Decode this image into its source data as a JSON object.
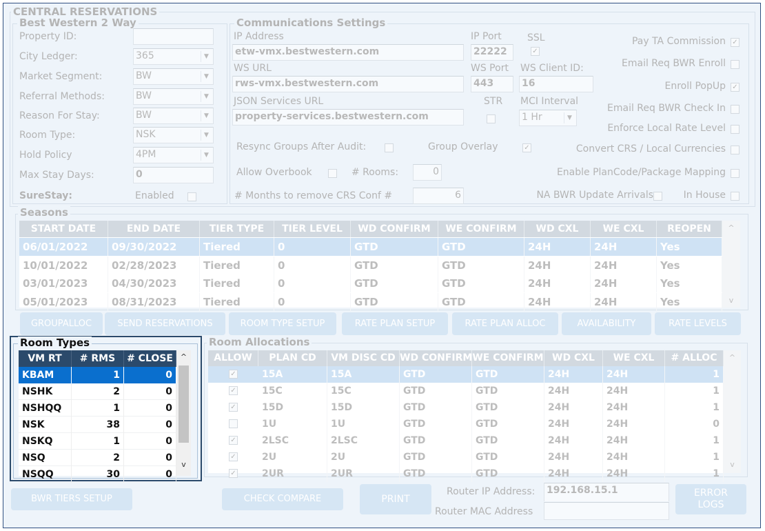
{
  "title": "CENTRAL RESERVATIONS",
  "bw": {
    "title": "Best Western 2 Way",
    "fields": [
      {
        "label": "Property ID:",
        "value": "",
        "type": "text"
      },
      {
        "label": "City Ledger:",
        "value": "365",
        "type": "select"
      },
      {
        "label": "Market Segment:",
        "value": "BW",
        "type": "select"
      },
      {
        "label": "Referral Methods:",
        "value": "BW",
        "type": "select"
      },
      {
        "label": "Reason For Stay:",
        "value": "BW",
        "type": "select"
      },
      {
        "label": "Room Type:",
        "value": "NSK",
        "type": "select"
      },
      {
        "label": "Hold Policy",
        "value": "4PM",
        "type": "select"
      },
      {
        "label": "Max Stay Days:",
        "value": "0",
        "type": "text"
      }
    ],
    "surestay_label": "SureStay:",
    "enabled_label": "Enabled",
    "enabled_checked": false
  },
  "comm": {
    "title": "Communications Settings",
    "ip_address_label": "IP Address",
    "ip_address": "etw-vmx.bestwestern.com",
    "ip_port_label": "IP Port",
    "ip_port": "22222",
    "ssl_label": "SSL",
    "ssl_checked": true,
    "ws_url_label": "WS URL",
    "ws_url": "rws-vmx.bestwestern.com",
    "ws_port_label": "WS Port",
    "ws_port": "443",
    "ws_client_label": "WS Client ID:",
    "ws_client": "16",
    "json_label": "JSON Services URL",
    "json_url": "property-services.bestwestern.com",
    "str_label": "STR",
    "str_checked": false,
    "mci_label": "MCI Interval",
    "mci_value": "1 Hr",
    "resync_label": "Resync Groups After Audit:",
    "resync_checked": false,
    "group_overlay_label": "Group Overlay",
    "group_overlay_checked": true,
    "overbook_label": "Allow Overbook",
    "overbook_checked": false,
    "rooms_label": "# Rooms:",
    "rooms_value": "0",
    "months_label": "# Months to remove CRS Conf #",
    "months_value": "6"
  },
  "options": [
    {
      "label": "Pay TA Commission",
      "checked": true
    },
    {
      "label": "Email Req BWR Enroll",
      "checked": false
    },
    {
      "label": "Enroll PopUp",
      "checked": true
    },
    {
      "label": "Email Req BWR Check In",
      "checked": false
    },
    {
      "label": "Enforce Local Rate Level",
      "checked": false
    },
    {
      "label": "Convert CRS / Local Currencies",
      "checked": false
    },
    {
      "label": "Enable PlanCode/Package Mapping",
      "checked": false
    },
    {
      "label": "NA BWR Update Arrivals",
      "checked": false
    },
    {
      "label": "In House",
      "checked": false
    }
  ],
  "seasons": {
    "title": "Seasons",
    "columns": [
      "START DATE",
      "END DATE",
      "TIER TYPE",
      "TIER LEVEL",
      "WD CONFIRM",
      "WE CONFIRM",
      "WD CXL",
      "WE CXL",
      "REOPEN"
    ],
    "rows": [
      [
        "06/01/2022",
        "09/30/2022",
        "Tiered",
        "0",
        "GTD",
        "GTD",
        "24H",
        "24H",
        "Yes"
      ],
      [
        "10/01/2022",
        "02/28/2023",
        "Tiered",
        "0",
        "GTD",
        "GTD",
        "24H",
        "24H",
        "Yes"
      ],
      [
        "03/01/2023",
        "04/30/2023",
        "Tiered",
        "0",
        "GTD",
        "GTD",
        "24H",
        "24H",
        "Yes"
      ],
      [
        "05/01/2023",
        "08/31/2023",
        "Tiered",
        "0",
        "GTD",
        "GTD",
        "24H",
        "24H",
        "Yes"
      ]
    ],
    "selected_row": 0
  },
  "action_buttons": [
    "GROUPALLOC",
    "SEND RESERVATIONS",
    "ROOM TYPE SETUP",
    "RATE PLAN SETUP",
    "RATE PLAN ALLOC",
    "AVAILABILITY",
    "RATE LEVELS"
  ],
  "room_types": {
    "title": "Room Types",
    "columns": [
      "VM RT",
      "# RMS",
      "# CLOSE"
    ],
    "rows": [
      [
        "KBAM",
        "1",
        "0"
      ],
      [
        "NSHK",
        "2",
        "0"
      ],
      [
        "NSHQQ",
        "1",
        "0"
      ],
      [
        "NSK",
        "38",
        "0"
      ],
      [
        "NSKQ",
        "1",
        "0"
      ],
      [
        "NSQ",
        "2",
        "0"
      ],
      [
        "NSQQ",
        "30",
        "0"
      ]
    ],
    "selected_row": 0
  },
  "room_alloc": {
    "title": "Room Allocations",
    "columns": [
      "ALLOW",
      "PLAN CD",
      "VM DISC CD",
      "WD CONFIRM",
      "WE CONFIRM",
      "WD CXL",
      "WE CXL",
      "# ALLOC"
    ],
    "rows": [
      {
        "allow": true,
        "cells": [
          "15A",
          "15A",
          "GTD",
          "GTD",
          "24H",
          "24H",
          "1"
        ]
      },
      {
        "allow": true,
        "cells": [
          "15C",
          "15C",
          "GTD",
          "GTD",
          "24H",
          "24H",
          "1"
        ]
      },
      {
        "allow": true,
        "cells": [
          "15D",
          "15D",
          "GTD",
          "GTD",
          "24H",
          "24H",
          "1"
        ]
      },
      {
        "allow": false,
        "cells": [
          "1U",
          "1U",
          "GTD",
          "GTD",
          "24H",
          "24H",
          "0"
        ]
      },
      {
        "allow": true,
        "cells": [
          "2LSC",
          "2LSC",
          "GTD",
          "GTD",
          "24H",
          "24H",
          "1"
        ]
      },
      {
        "allow": true,
        "cells": [
          "2U",
          "2U",
          "GTD",
          "GTD",
          "24H",
          "24H",
          "1"
        ]
      },
      {
        "allow": true,
        "cells": [
          "2UR",
          "2UR",
          "GTD",
          "GTD",
          "24H",
          "24H",
          "1"
        ]
      }
    ],
    "selected_row": 0
  },
  "bottom": {
    "bwr_tiers": "BWR TIERS SETUP",
    "check_compare": "CHECK COMPARE",
    "print": "PRINT",
    "router_ip_label": "Router IP Address:",
    "router_ip": "192.168.15.1",
    "router_mac_label": "Router MAC Address",
    "router_mac": "",
    "error_logs": "ERROR LOGS"
  },
  "colors": {
    "background": "#eef4fa",
    "header": "#d2d9e0",
    "selected": "#cfe2f4",
    "rt_header": "#2b4a6b",
    "rt_selected": "#0a6fce",
    "frame": "#2f4f80"
  }
}
